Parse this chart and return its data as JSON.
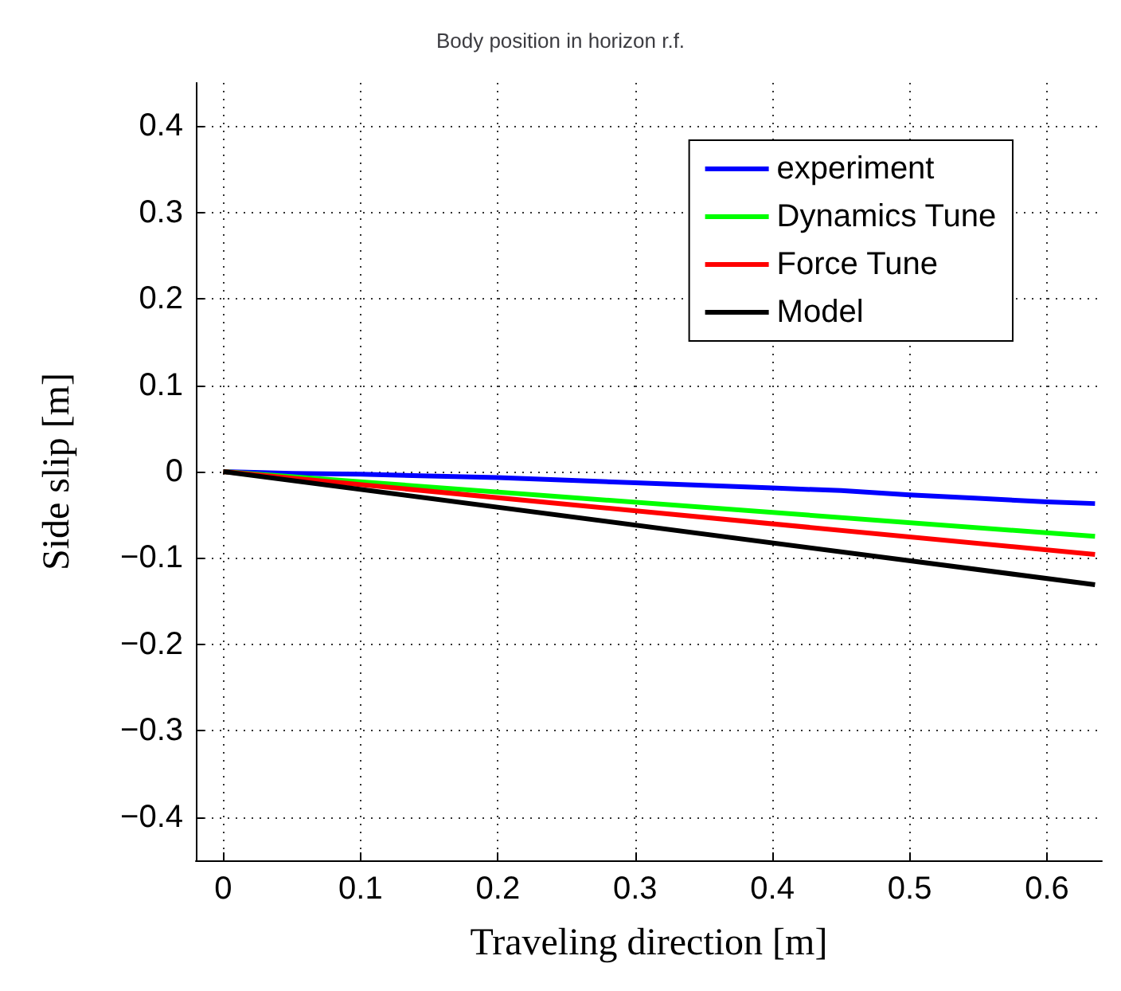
{
  "chart_data": {
    "type": "line",
    "title": "Body position in horizon r.f.",
    "xlabel": "Traveling direction [m]",
    "ylabel": "Side slip [m]",
    "xlim": [
      -0.02,
      0.64
    ],
    "xticks": [
      0,
      0.1,
      0.2,
      0.3,
      0.4,
      0.5,
      0.6
    ],
    "ylim": [
      -0.45,
      0.45
    ],
    "yticks": [
      -0.4,
      -0.3,
      -0.2,
      -0.1,
      0,
      0.1,
      0.2,
      0.3,
      0.4
    ],
    "grid": true,
    "legend": "top right",
    "marker": "none",
    "line_style": "solid",
    "series": [
      {
        "name": "experiment",
        "color": "#0000ff",
        "x": [
          0,
          0.05,
          0.1,
          0.15,
          0.2,
          0.25,
          0.3,
          0.35,
          0.4,
          0.45,
          0.5,
          0.55,
          0.6,
          0.635
        ],
        "values": [
          0,
          -0.002,
          -0.003,
          -0.005,
          -0.007,
          -0.01,
          -0.013,
          -0.016,
          -0.019,
          -0.022,
          -0.027,
          -0.031,
          -0.035,
          -0.037
        ]
      },
      {
        "name": "Dynamics Tune",
        "color": "#00ff00",
        "x": [
          0,
          0.635
        ],
        "values": [
          0,
          -0.075
        ]
      },
      {
        "name": "Force Tune",
        "color": "#ff0000",
        "x": [
          0,
          0.635
        ],
        "values": [
          0,
          -0.096
        ]
      },
      {
        "name": "Model",
        "color": "#000000",
        "x": [
          0,
          0.635
        ],
        "values": [
          0,
          -0.131
        ]
      }
    ]
  }
}
